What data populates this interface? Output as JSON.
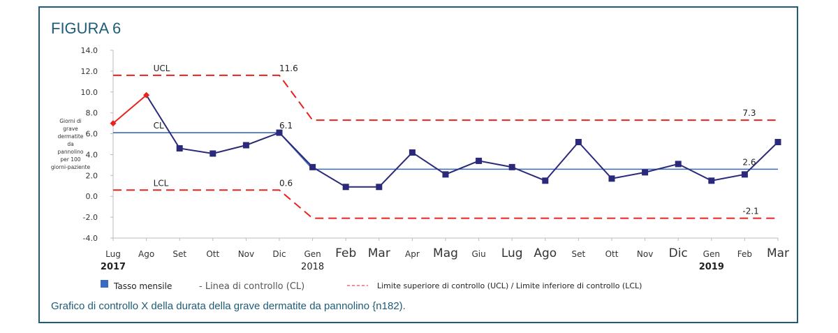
{
  "figure_label": "FIGURA 6",
  "caption": "Grafico di controllo X della durata della grave dermatite da pannolino {n182).",
  "colors": {
    "frame": "#1e5c78",
    "series": "#2b2a7a",
    "early_series": "#e8231f",
    "cl": "#3a6bbf",
    "limits": "#e8231f"
  },
  "chart_data": {
    "type": "line",
    "ylabel": "Giorni di grave dermatite da pannolino per 100 giorni-paziente",
    "ylim": [
      -4,
      14
    ],
    "yticks": [
      "14.0",
      "12.0",
      "10.0",
      "8.0",
      "6.0",
      "4.0",
      "2.0",
      "0.0",
      "-2.0",
      "-4.0"
    ],
    "ytick_values": [
      14,
      12,
      10,
      8,
      6,
      4,
      2,
      0,
      -2,
      -4
    ],
    "categories": [
      "Lug",
      "Ago",
      "Set",
      "Ott",
      "Nov",
      "Dic",
      "Gen",
      "Feb",
      "Mar",
      "Apr",
      "Mag",
      "Giu",
      "Lug",
      "Ago",
      "Set",
      "Ott",
      "Nov",
      "Dic",
      "Gen",
      "Feb",
      "Mar"
    ],
    "year_labels": [
      {
        "index": 0,
        "text": "2017"
      },
      {
        "index": 6,
        "text": "2018"
      },
      {
        "index": 18,
        "text": "2019"
      }
    ],
    "series": [
      {
        "name": "Tasso mensile",
        "values": [
          7.0,
          9.7,
          4.6,
          4.1,
          4.9,
          6.1,
          2.8,
          0.9,
          0.9,
          4.2,
          2.1,
          3.4,
          2.8,
          1.5,
          5.2,
          1.7,
          2.3,
          3.1,
          1.5,
          2.1,
          5.2
        ]
      }
    ],
    "cl": [
      6.1,
      6.1,
      6.1,
      6.1,
      6.1,
      6.1,
      2.6,
      2.6,
      2.6,
      2.6,
      2.6,
      2.6,
      2.6,
      2.6,
      2.6,
      2.6,
      2.6,
      2.6,
      2.6,
      2.6,
      2.6
    ],
    "ucl": [
      11.6,
      11.6,
      11.6,
      11.6,
      11.6,
      11.6,
      7.3,
      7.3,
      7.3,
      7.3,
      7.3,
      7.3,
      7.3,
      7.3,
      7.3,
      7.3,
      7.3,
      7.3,
      7.3,
      7.3,
      7.3
    ],
    "lcl": [
      0.6,
      0.6,
      0.6,
      0.6,
      0.6,
      0.6,
      -2.1,
      -2.1,
      -2.1,
      -2.1,
      -2.1,
      -2.1,
      -2.1,
      -2.1,
      -2.1,
      -2.1,
      -2.1,
      -2.1,
      -2.1,
      -2.1,
      -2.1
    ],
    "annotations": [
      {
        "text": "UCL",
        "index": 1,
        "y": 11.6
      },
      {
        "text": "CL",
        "index": 1,
        "y": 6.1
      },
      {
        "text": "LCL",
        "index": 1,
        "y": 0.6
      },
      {
        "text": "11.6",
        "index": 5,
        "y": 11.6
      },
      {
        "text": "6.1",
        "index": 5,
        "y": 6.1
      },
      {
        "text": "0.6",
        "index": 5,
        "y": 0.6
      },
      {
        "text": "7.3",
        "index": 19,
        "y": 7.3
      },
      {
        "text": "2.6",
        "index": 19,
        "y": 2.6
      },
      {
        "text": "-2.1",
        "index": 19,
        "y": -2.1
      }
    ],
    "legend": [
      {
        "label": "Tasso mensile",
        "marker": "square"
      },
      {
        "label": "- Linea di controllo (CL)",
        "marker": "none"
      },
      {
        "label": "Limite superiore di controllo (UCL) / Limite inferiore di controllo (LCL)",
        "marker": "dashed"
      }
    ],
    "legend_placement": "bottom",
    "grid": false
  }
}
